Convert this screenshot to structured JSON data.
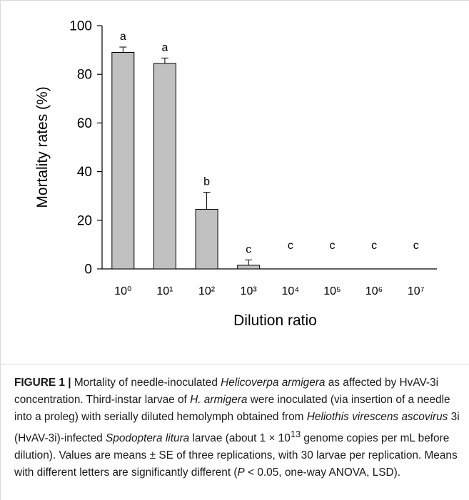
{
  "chart_data": {
    "type": "bar",
    "categories": [
      "10⁰",
      "10¹",
      "10²",
      "10³",
      "10⁴",
      "10⁵",
      "10⁶",
      "10⁷"
    ],
    "values": [
      89,
      84.5,
      24.5,
      1.5,
      0,
      0,
      0,
      0
    ],
    "errors": [
      2.2,
      2.2,
      7.0,
      2.2,
      0,
      0,
      0,
      0
    ],
    "letters": [
      "a",
      "a",
      "b",
      "c",
      "c",
      "c",
      "c",
      "c"
    ],
    "xlabel": "Dilution ratio",
    "ylabel": "Mortality rates (%)",
    "ylim": [
      0,
      100
    ],
    "yticks": [
      0,
      20,
      40,
      60,
      80,
      100
    ],
    "grid": false,
    "bar_color": "#c0c0c0"
  },
  "caption": {
    "label": "FIGURE 1 |",
    "p1": " Mortality of needle-inoculated ",
    "sp1": "Helicoverpa armigera",
    "p2": " as affected by HvAV-3i concentration. Third-instar larvae of ",
    "sp2": "H. armigera",
    "p3": " were inoculated (via insertion of a needle into a proleg) with serially diluted hemolymph obtained from ",
    "sp3": "Heliothis virescens ascovirus",
    "p4": " 3i (HvAV-3i)-infected ",
    "sp4": "Spodoptera litura",
    "p5": " larvae (about 1 × 10",
    "exp": "13",
    "p6": " genome copies per mL before dilution). Values are means ± SE of three replications, with 30 larvae per replication. Means with different letters are significantly different (",
    "pvar": "P",
    "p7": " < 0.05, one-way ANOVA, LSD)."
  }
}
